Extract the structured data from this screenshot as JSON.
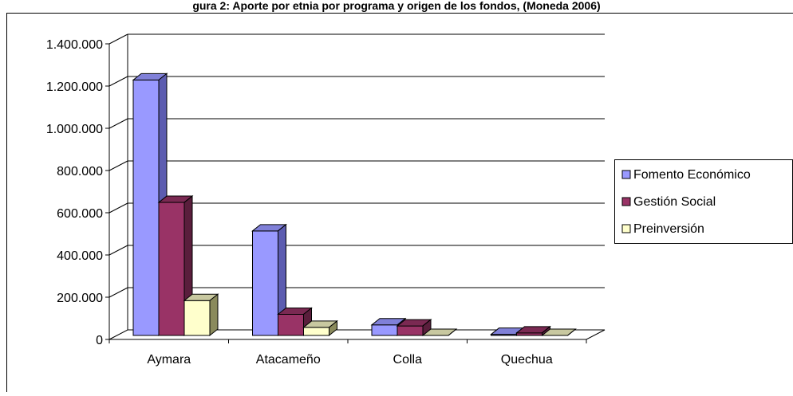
{
  "chart_data": {
    "type": "bar",
    "title": "gura 2: Aporte por etnia por programa y origen de los fondos, (Moneda 2006)",
    "categories": [
      "Aymara",
      "Atacameño",
      "Colla",
      "Quechua"
    ],
    "series": [
      {
        "name": "Fomento Económico",
        "values": [
          1210000,
          495000,
          50000,
          5000
        ]
      },
      {
        "name": "Gestión Social",
        "values": [
          630000,
          100000,
          45000,
          12000
        ]
      },
      {
        "name": "Preinversión",
        "values": [
          165000,
          38000,
          0,
          0
        ]
      }
    ],
    "y_ticks": [
      "0",
      "200.000",
      "400.000",
      "600.000",
      "800.000",
      "1.000.000",
      "1.200.000",
      "1.400.000"
    ],
    "ylim": [
      0,
      1400000
    ],
    "grid": true,
    "legend_position": "right",
    "colors": {
      "Fomento Económico": {
        "front": "#9999ff",
        "side": "#5c5cb0",
        "top": "#8080d8"
      },
      "Gestión Social": {
        "front": "#993366",
        "side": "#5a1e3c",
        "top": "#7a2952"
      },
      "Preinversión": {
        "front": "#ffffcc",
        "side": "#8a8a5c",
        "top": "#c8c8a0"
      },
      "walls": "#ffffff",
      "lines": "#000000"
    }
  }
}
